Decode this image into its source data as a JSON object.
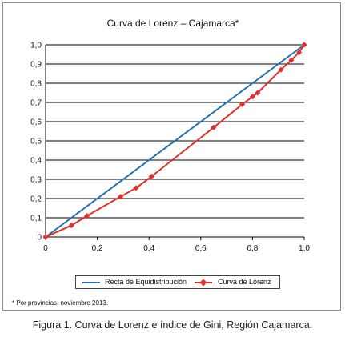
{
  "chart_data": {
    "type": "line",
    "title": "Curva de Lorenz – Cajamarca*",
    "xlim": [
      0,
      1
    ],
    "ylim": [
      0,
      1
    ],
    "x_ticks": [
      "0",
      "0,2",
      "0,4",
      "0,6",
      "0,8",
      "1,0"
    ],
    "x_tick_values": [
      0,
      0.2,
      0.4,
      0.6,
      0.8,
      1.0
    ],
    "y_ticks": [
      "0",
      "0,1",
      "0,2",
      "0,3",
      "0,4",
      "0,5",
      "0,6",
      "0,7",
      "0,8",
      "0,9",
      "1,0"
    ],
    "y_tick_values": [
      0,
      0.1,
      0.2,
      0.3,
      0.4,
      0.5,
      0.6,
      0.7,
      0.8,
      0.9,
      1.0
    ],
    "grid": "horizontal",
    "legend_position": "bottom",
    "series": [
      {
        "name": "Recta de Equidistribución",
        "color": "#2472b4",
        "marker": "none",
        "x": [
          0,
          1
        ],
        "y": [
          0,
          1
        ]
      },
      {
        "name": "Curva de Lorenz",
        "color": "#e0302a",
        "marker": "diamond",
        "x": [
          0,
          0.1,
          0.16,
          0.29,
          0.35,
          0.41,
          0.65,
          0.76,
          0.8,
          0.82,
          0.91,
          0.95,
          0.98,
          1.0
        ],
        "y": [
          0,
          0.06,
          0.11,
          0.21,
          0.255,
          0.315,
          0.57,
          0.69,
          0.73,
          0.75,
          0.87,
          0.92,
          0.96,
          1.0
        ]
      }
    ]
  },
  "footnote": "* Por provincias, noviembre 2013.",
  "caption": "Figura 1. Curva de Lorenz e índice de Gini, Región Cajamarca."
}
